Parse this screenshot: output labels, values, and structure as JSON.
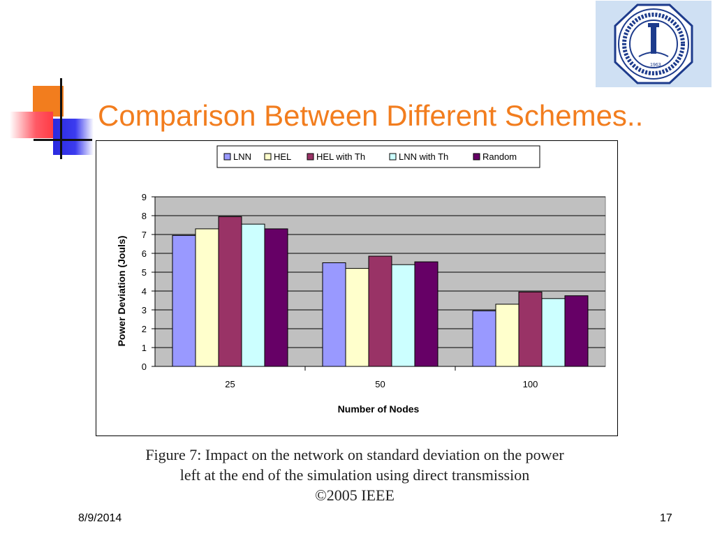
{
  "slide": {
    "title": "Comparison Between Different Schemes..",
    "date": "8/9/2014",
    "page_number": "17"
  },
  "caption": {
    "line1": "Figure 7: Impact on the network on standard deviation on the power",
    "line2": "left at the end of the simulation using direct transmission",
    "line3": "©2005 IEEE"
  },
  "logo": {
    "emblem": "university-seal",
    "seal_year": "1963",
    "seal_text": "KING FAHD UNIVERSITY OF PETROLEUM & MINERALS"
  },
  "chart_data": {
    "type": "bar",
    "categories": [
      "25",
      "50",
      "100"
    ],
    "series": [
      {
        "name": "LNN",
        "color": "#9999ff",
        "values": [
          6.95,
          5.5,
          2.95
        ]
      },
      {
        "name": "HEL",
        "color": "#ffffcc",
        "values": [
          7.3,
          5.2,
          3.3
        ]
      },
      {
        "name": "HEL with Th",
        "color": "#993366",
        "values": [
          7.95,
          5.85,
          3.95
        ]
      },
      {
        "name": "LNN with Th",
        "color": "#ccffff",
        "values": [
          7.55,
          5.4,
          3.6
        ]
      },
      {
        "name": "Random",
        "color": "#660066",
        "values": [
          7.3,
          5.55,
          3.75
        ]
      }
    ],
    "xlabel": "Number of Nodes",
    "ylabel": "Power Deviation (Jouls)",
    "ylim": [
      0,
      9
    ],
    "yticks": [
      "0",
      "1",
      "2",
      "3",
      "4",
      "5",
      "6",
      "7",
      "8",
      "9"
    ],
    "plot_background": "#c0c0c0",
    "grid": true,
    "legend_position": "top"
  }
}
